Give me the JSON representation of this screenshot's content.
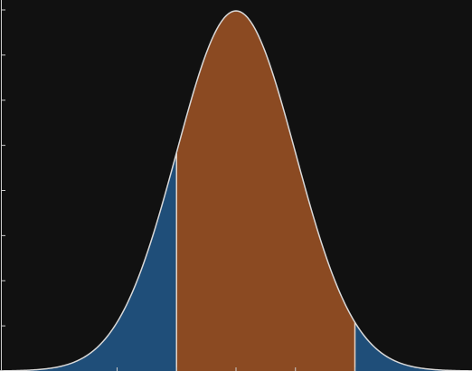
{
  "chart_data": {
    "type": "area",
    "title": "",
    "xlabel": "",
    "ylabel": "",
    "x_range": [
      -4,
      4
    ],
    "y_range": [
      0,
      0.41
    ],
    "distribution": "normal",
    "mean": 0,
    "sd": 1,
    "shaded_regions": [
      {
        "name": "",
        "from": -4,
        "to": -1,
        "color": "#1f4e79"
      },
      {
        "name": "",
        "from": -1,
        "to": 2,
        "color": "#8b4a22"
      },
      {
        "name": "",
        "from": 2,
        "to": 4,
        "color": "#1f4e79"
      }
    ],
    "boundaries": [
      -1,
      2
    ],
    "curve_color": "#d9d9d9",
    "boundary_color": "#e6d2c3",
    "y_ticks": [
      0.05,
      0.1,
      0.15,
      0.2,
      0.25,
      0.3,
      0.35,
      0.4
    ],
    "x_ticks": [
      -2,
      -1,
      0,
      1,
      2
    ],
    "background": "#111111",
    "grid": false,
    "legend": "none"
  }
}
